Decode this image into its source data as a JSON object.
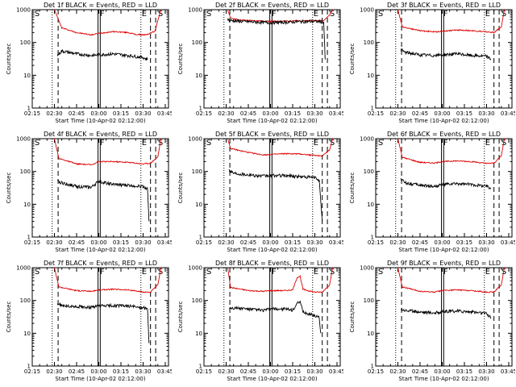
{
  "chart_data": [
    {
      "type": "line",
      "title": "Det 1f BLACK = Events, RED = LLD",
      "xlabel": "Start Time (10-Apr-02 02:12:00)",
      "ylabel": "Counts/sec",
      "yscale": "log",
      "ylim": [
        1,
        1000
      ],
      "x_ticks": [
        "02:15",
        "02:30",
        "02:45",
        "03:00",
        "03:15",
        "03:30",
        "03:45"
      ],
      "y_ticks": [
        "1",
        "10",
        "100",
        "1000"
      ],
      "flags": [
        "S",
        "F",
        "E",
        "S"
      ],
      "series": [
        {
          "color": "#dd0000",
          "x": [
            "02:30",
            "02:35",
            "02:45",
            "02:55",
            "03:00",
            "03:10",
            "03:20",
            "03:25",
            "03:32",
            "03:38",
            "03:42"
          ],
          "y": [
            1000,
            280,
            200,
            170,
            190,
            215,
            200,
            175,
            170,
            220,
            1000
          ]
        },
        {
          "color": "#000000",
          "x": [
            "02:32",
            "02:35",
            "02:45",
            "02:55",
            "03:00",
            "03:10",
            "03:20",
            "03:30",
            "03:33"
          ],
          "y": [
            40,
            55,
            45,
            40,
            42,
            45,
            40,
            35,
            30
          ]
        }
      ]
    },
    {
      "type": "line",
      "title": "Det 2f BLACK = Events, RED = LLD",
      "xlabel": "Start Time (10-Apr-02 02:12:00)",
      "ylabel": "Counts/sec",
      "yscale": "log",
      "ylim": [
        1,
        1000
      ],
      "x_ticks": [
        "02:15",
        "02:30",
        "02:45",
        "03:00",
        "03:15",
        "03:30",
        "03:45"
      ],
      "y_ticks": [
        "1",
        "10",
        "100",
        "1000"
      ],
      "flags": [
        "S",
        "F",
        "E",
        "S"
      ],
      "series": [
        {
          "color": "#dd0000",
          "x": [
            "02:31",
            "02:33",
            "02:40",
            "02:50",
            "03:00",
            "03:10",
            "03:20",
            "03:30",
            "03:36",
            "03:40",
            "03:42"
          ],
          "y": [
            1000,
            550,
            480,
            460,
            440,
            450,
            460,
            470,
            460,
            700,
            1000
          ]
        },
        {
          "color": "#000000",
          "x": [
            "02:31",
            "02:33",
            "02:40",
            "02:50",
            "03:00",
            "03:10",
            "03:20",
            "03:30",
            "03:36",
            "03:37"
          ],
          "y": [
            500,
            470,
            440,
            420,
            400,
            415,
            430,
            440,
            420,
            30
          ]
        }
      ]
    },
    {
      "type": "line",
      "title": "Det 3f BLACK = Events, RED = LLD",
      "xlabel": "Start Time (10-Apr-02 02:12:00)",
      "ylabel": "Counts/sec",
      "yscale": "log",
      "ylim": [
        1,
        1000
      ],
      "x_ticks": [
        "02:15",
        "02:30",
        "02:45",
        "03:00",
        "03:15",
        "03:30",
        "03:45"
      ],
      "y_ticks": [
        "1",
        "10",
        "100",
        "1000"
      ],
      "flags": [
        "S",
        "F",
        "E",
        "S"
      ],
      "series": [
        {
          "color": "#dd0000",
          "x": [
            "02:30",
            "02:33",
            "02:45",
            "02:55",
            "03:00",
            "03:10",
            "03:20",
            "03:30",
            "03:35",
            "03:40",
            "03:42"
          ],
          "y": [
            1000,
            300,
            230,
            210,
            220,
            240,
            230,
            210,
            200,
            300,
            1000
          ]
        },
        {
          "color": "#000000",
          "x": [
            "02:32",
            "02:35",
            "02:45",
            "02:55",
            "03:00",
            "03:10",
            "03:20",
            "03:30",
            "03:33"
          ],
          "y": [
            60,
            50,
            42,
            40,
            42,
            45,
            40,
            38,
            30
          ]
        }
      ]
    },
    {
      "type": "line",
      "title": "Det 4f BLACK = Events, RED = LLD",
      "xlabel": "Start Time (10-Apr-02 02:12:00)",
      "ylabel": "Counts/sec",
      "yscale": "log",
      "ylim": [
        1,
        1000
      ],
      "x_ticks": [
        "02:15",
        "02:30",
        "02:45",
        "03:00",
        "03:15",
        "03:30",
        "03:45"
      ],
      "y_ticks": [
        "1",
        "10",
        "100",
        "1000"
      ],
      "flags": [
        "S",
        "F",
        "E",
        "S"
      ],
      "series": [
        {
          "color": "#dd0000",
          "x": [
            "02:30",
            "02:33",
            "02:45",
            "02:55",
            "03:00",
            "03:10",
            "03:20",
            "03:30",
            "03:35",
            "03:40",
            "03:42"
          ],
          "y": [
            1000,
            250,
            170,
            160,
            200,
            200,
            190,
            170,
            180,
            280,
            1000
          ]
        },
        {
          "color": "#000000",
          "x": [
            "02:32",
            "02:35",
            "02:45",
            "02:55",
            "03:00",
            "03:10",
            "03:20",
            "03:30",
            "03:33",
            "03:34"
          ],
          "y": [
            50,
            45,
            35,
            33,
            50,
            40,
            38,
            35,
            30,
            3
          ]
        }
      ]
    },
    {
      "type": "line",
      "title": "Det 5f BLACK = Events, RED = LLD",
      "xlabel": "Start Time (10-Apr-02 02:12:00)",
      "ylabel": "Counts/sec",
      "yscale": "log",
      "ylim": [
        1,
        1000
      ],
      "x_ticks": [
        "02:15",
        "02:30",
        "02:45",
        "03:00",
        "03:15",
        "03:30",
        "03:45"
      ],
      "y_ticks": [
        "1",
        "10",
        "100",
        "1000"
      ],
      "flags": [
        "S",
        "F",
        "E",
        "S"
      ],
      "series": [
        {
          "color": "#dd0000",
          "x": [
            "02:31",
            "02:33",
            "02:45",
            "02:55",
            "03:00",
            "03:10",
            "03:20",
            "03:30",
            "03:35",
            "03:40",
            "03:42"
          ],
          "y": [
            1000,
            500,
            380,
            320,
            330,
            350,
            340,
            310,
            300,
            450,
            1000
          ]
        },
        {
          "color": "#000000",
          "x": [
            "02:32",
            "02:35",
            "02:45",
            "02:55",
            "03:00",
            "03:10",
            "03:20",
            "03:30",
            "03:33",
            "03:35"
          ],
          "y": [
            110,
            90,
            80,
            72,
            75,
            75,
            70,
            65,
            55,
            3
          ]
        }
      ]
    },
    {
      "type": "line",
      "title": "Det 6f BLACK = Events, RED = LLD",
      "xlabel": "Start Time (10-Apr-02 02:12:00)",
      "ylabel": "Counts/sec",
      "yscale": "log",
      "ylim": [
        1,
        1000
      ],
      "x_ticks": [
        "02:15",
        "02:30",
        "02:45",
        "03:00",
        "03:15",
        "03:30",
        "03:45"
      ],
      "y_ticks": [
        "1",
        "10",
        "100",
        "1000"
      ],
      "flags": [
        "S",
        "F",
        "E",
        "S"
      ],
      "series": [
        {
          "color": "#dd0000",
          "x": [
            "02:30",
            "02:33",
            "02:45",
            "02:55",
            "03:00",
            "03:10",
            "03:20",
            "03:30",
            "03:35",
            "03:40",
            "03:42"
          ],
          "y": [
            1000,
            270,
            190,
            180,
            200,
            210,
            200,
            175,
            180,
            300,
            1000
          ]
        },
        {
          "color": "#000000",
          "x": [
            "02:32",
            "02:35",
            "02:45",
            "02:55",
            "03:00",
            "03:10",
            "03:20",
            "03:30",
            "03:33"
          ],
          "y": [
            60,
            45,
            38,
            35,
            40,
            42,
            40,
            36,
            30
          ]
        }
      ]
    },
    {
      "type": "line",
      "title": "Det 7f BLACK = Events, RED = LLD",
      "xlabel": "Start Time (10-Apr-02 02:12:00)",
      "ylabel": "Counts/sec",
      "yscale": "log",
      "ylim": [
        1,
        1000
      ],
      "x_ticks": [
        "02:15",
        "02:30",
        "02:45",
        "03:00",
        "03:15",
        "03:30",
        "03:45"
      ],
      "y_ticks": [
        "1",
        "10",
        "100",
        "1000"
      ],
      "flags": [
        "S",
        "F",
        "E",
        "S"
      ],
      "series": [
        {
          "color": "#dd0000",
          "x": [
            "02:30",
            "02:33",
            "02:45",
            "02:55",
            "03:00",
            "03:10",
            "03:20",
            "03:30",
            "03:35",
            "03:40",
            "03:42"
          ],
          "y": [
            1000,
            260,
            200,
            190,
            210,
            220,
            210,
            180,
            180,
            300,
            1000
          ]
        },
        {
          "color": "#000000",
          "x": [
            "02:32",
            "02:35",
            "02:45",
            "02:55",
            "03:00",
            "03:10",
            "03:20",
            "03:30",
            "03:33",
            "03:34"
          ],
          "y": [
            80,
            70,
            65,
            62,
            68,
            70,
            68,
            60,
            55,
            5
          ]
        }
      ]
    },
    {
      "type": "line",
      "title": "Det 8f BLACK = Events, RED = LLD",
      "xlabel": "Start Time (10-Apr-02 02:12:00)",
      "ylabel": "Counts/sec",
      "yscale": "log",
      "ylim": [
        1,
        1000
      ],
      "x_ticks": [
        "02:15",
        "02:30",
        "02:45",
        "03:00",
        "03:15",
        "03:30",
        "03:45"
      ],
      "y_ticks": [
        "1",
        "10",
        "100",
        "1000"
      ],
      "flags": [
        "S",
        "F",
        "E",
        "S"
      ],
      "series": [
        {
          "color": "#dd0000",
          "x": [
            "02:31",
            "02:33",
            "02:45",
            "02:55",
            "03:00",
            "03:10",
            "03:15",
            "03:18",
            "03:20",
            "03:22",
            "03:25",
            "03:30",
            "03:35",
            "03:40",
            "03:42"
          ],
          "y": [
            1000,
            250,
            200,
            190,
            200,
            200,
            210,
            500,
            550,
            220,
            200,
            180,
            180,
            300,
            1000
          ]
        },
        {
          "color": "#000000",
          "x": [
            "02:32",
            "02:35",
            "02:45",
            "02:55",
            "03:00",
            "03:10",
            "03:15",
            "03:18",
            "03:20",
            "03:22",
            "03:25",
            "03:30",
            "03:33",
            "03:34"
          ],
          "y": [
            60,
            60,
            55,
            50,
            55,
            55,
            50,
            80,
            90,
            45,
            40,
            35,
            30,
            10
          ]
        }
      ]
    },
    {
      "type": "line",
      "title": "Det 9f BLACK = Events, RED = LLD",
      "xlabel": "Start Time (10-Apr-02 02:12:00)",
      "ylabel": "Counts/sec",
      "yscale": "log",
      "ylim": [
        1,
        1000
      ],
      "x_ticks": [
        "02:15",
        "02:30",
        "02:45",
        "03:00",
        "03:15",
        "03:30",
        "03:45"
      ],
      "y_ticks": [
        "1",
        "10",
        "100",
        "1000"
      ],
      "flags": [
        "S",
        "F",
        "E",
        "S"
      ],
      "series": [
        {
          "color": "#dd0000",
          "x": [
            "02:30",
            "02:33",
            "02:45",
            "02:55",
            "03:00",
            "03:10",
            "03:20",
            "03:30",
            "03:35",
            "03:40",
            "03:42"
          ],
          "y": [
            1000,
            260,
            190,
            180,
            200,
            210,
            200,
            180,
            180,
            300,
            1000
          ]
        },
        {
          "color": "#000000",
          "x": [
            "02:32",
            "02:35",
            "02:45",
            "02:55",
            "03:00",
            "03:10",
            "03:20",
            "03:30",
            "03:33"
          ],
          "y": [
            55,
            50,
            45,
            42,
            45,
            48,
            45,
            40,
            30
          ]
        }
      ]
    }
  ]
}
